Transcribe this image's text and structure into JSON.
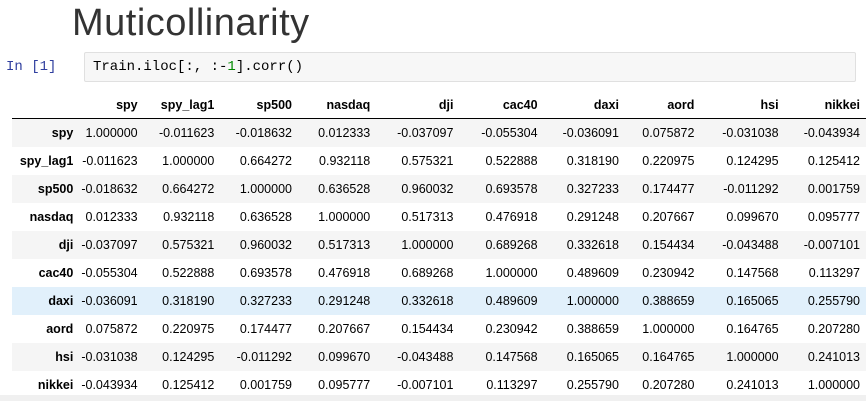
{
  "title": "Muticollinarity",
  "cell": {
    "prompt": "In [1]",
    "code_prefix": "Train.iloc[:, :-",
    "code_number": "1",
    "code_suffix": "].corr()"
  },
  "table": {
    "columns": [
      "spy",
      "spy_lag1",
      "sp500",
      "nasdaq",
      "dji",
      "cac40",
      "daxi",
      "aord",
      "hsi",
      "nikkei"
    ],
    "rows": [
      {
        "label": "spy",
        "values": [
          "1.000000",
          "-0.011623",
          "-0.018632",
          "0.012333",
          "-0.037097",
          "-0.055304",
          "-0.036091",
          "0.075872",
          "-0.031038",
          "-0.043934"
        ]
      },
      {
        "label": "spy_lag1",
        "values": [
          "-0.011623",
          "1.000000",
          "0.664272",
          "0.932118",
          "0.575321",
          "0.522888",
          "0.318190",
          "0.220975",
          "0.124295",
          "0.125412"
        ]
      },
      {
        "label": "sp500",
        "values": [
          "-0.018632",
          "0.664272",
          "1.000000",
          "0.636528",
          "0.960032",
          "0.693578",
          "0.327233",
          "0.174477",
          "-0.011292",
          "0.001759"
        ]
      },
      {
        "label": "nasdaq",
        "values": [
          "0.012333",
          "0.932118",
          "0.636528",
          "1.000000",
          "0.517313",
          "0.476918",
          "0.291248",
          "0.207667",
          "0.099670",
          "0.095777"
        ]
      },
      {
        "label": "dji",
        "values": [
          "-0.037097",
          "0.575321",
          "0.960032",
          "0.517313",
          "1.000000",
          "0.689268",
          "0.332618",
          "0.154434",
          "-0.043488",
          "-0.007101"
        ]
      },
      {
        "label": "cac40",
        "values": [
          "-0.055304",
          "0.522888",
          "0.693578",
          "0.476918",
          "0.689268",
          "1.000000",
          "0.489609",
          "0.230942",
          "0.147568",
          "0.113297"
        ]
      },
      {
        "label": "daxi",
        "values": [
          "-0.036091",
          "0.318190",
          "0.327233",
          "0.291248",
          "0.332618",
          "0.489609",
          "1.000000",
          "0.388659",
          "0.165065",
          "0.255790"
        ]
      },
      {
        "label": "aord",
        "values": [
          "0.075872",
          "0.220975",
          "0.174477",
          "0.207667",
          "0.154434",
          "0.230942",
          "0.388659",
          "1.000000",
          "0.164765",
          "0.207280"
        ]
      },
      {
        "label": "hsi",
        "values": [
          "-0.031038",
          "0.124295",
          "-0.011292",
          "0.099670",
          "-0.043488",
          "0.147568",
          "0.165065",
          "0.164765",
          "1.000000",
          "0.241013"
        ]
      },
      {
        "label": "nikkei",
        "values": [
          "-0.043934",
          "0.125412",
          "0.001759",
          "0.095777",
          "-0.007101",
          "0.113297",
          "0.255790",
          "0.207280",
          "0.241013",
          "1.000000"
        ]
      }
    ],
    "highlighted_row": "daxi"
  },
  "colors": {
    "prompt": "#303f9f",
    "code_number": "#008800",
    "row_highlight": "#e1f0fb",
    "row_stripe": "#f5f5f5"
  }
}
